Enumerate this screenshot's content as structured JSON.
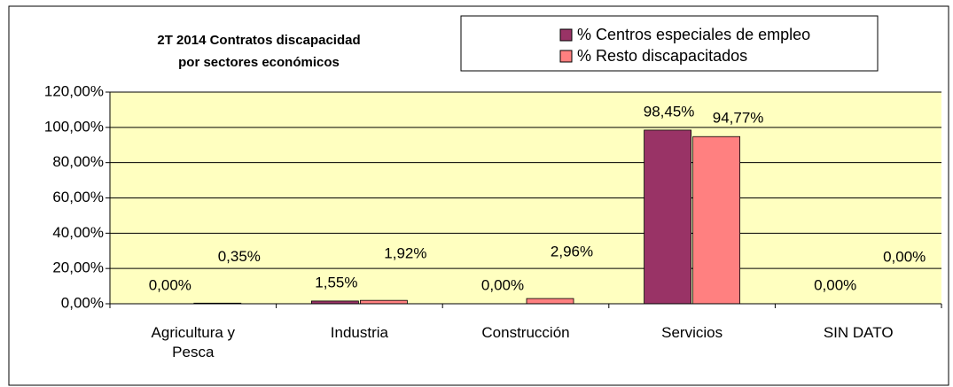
{
  "chart_data": {
    "type": "bar",
    "title": [
      "2T 2014 Contratos discapacidad",
      "por sectores económicos"
    ],
    "categories": [
      "Agricultura y Pesca",
      "Industria",
      "Construcción",
      "Servicios",
      "SIN DATO"
    ],
    "series": [
      {
        "name": "% Centros especiales de empleo",
        "color": "#993366",
        "values": [
          0,
          1.55,
          0,
          98.45,
          0
        ],
        "value_labels": [
          "0,00%",
          "1,55%",
          "0,00%",
          "98,45%",
          "0,00%"
        ]
      },
      {
        "name": "% Resto discapacitados",
        "color": "#ff8080",
        "values": [
          0.35,
          1.92,
          2.96,
          94.77,
          0
        ],
        "value_labels": [
          "0,35%",
          "1,92%",
          "2,96%",
          "94,77%",
          "0,00%"
        ]
      }
    ],
    "ylim": [
      0,
      120
    ],
    "yticks": [
      {
        "value": 0,
        "label": "0,00%"
      },
      {
        "value": 20,
        "label": "20,00%"
      },
      {
        "value": 40,
        "label": "40,00%"
      },
      {
        "value": 60,
        "label": "60,00%"
      },
      {
        "value": 80,
        "label": "80,00%"
      },
      {
        "value": 100,
        "label": "100,00%"
      },
      {
        "value": 120,
        "label": "120,00%"
      }
    ],
    "grid": true,
    "plot_background": "#ffffc0",
    "legend": "top-right"
  }
}
